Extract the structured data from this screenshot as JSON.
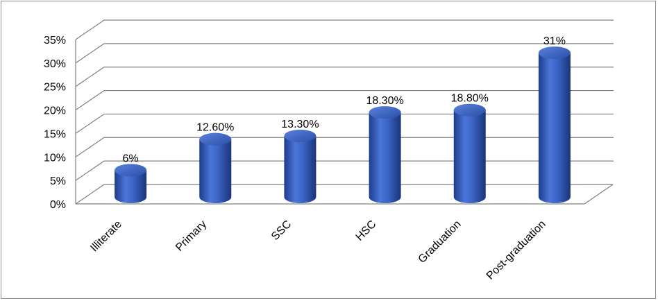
{
  "chart_data": {
    "type": "bar",
    "style": "3d-cylinder",
    "categories": [
      "Illiterate",
      "Primary",
      "SSC",
      "HSC",
      "Graduation",
      "Post-graduation"
    ],
    "values": [
      6,
      12.6,
      13.3,
      18.3,
      18.8,
      31
    ],
    "data_labels": [
      "6%",
      "12.60%",
      "13.30%",
      "18.30%",
      "18.80%",
      "31%"
    ],
    "y_ticks": [
      "0%",
      "5%",
      "10%",
      "15%",
      "20%",
      "25%",
      "30%",
      "35%"
    ],
    "ylim": [
      0,
      35
    ],
    "grid": true,
    "legend": "none",
    "colors": {
      "bar": "#3a63c4",
      "bar_dark": "#1d3a86",
      "bar_light": "#6d93e6",
      "grid": "#808080"
    }
  }
}
